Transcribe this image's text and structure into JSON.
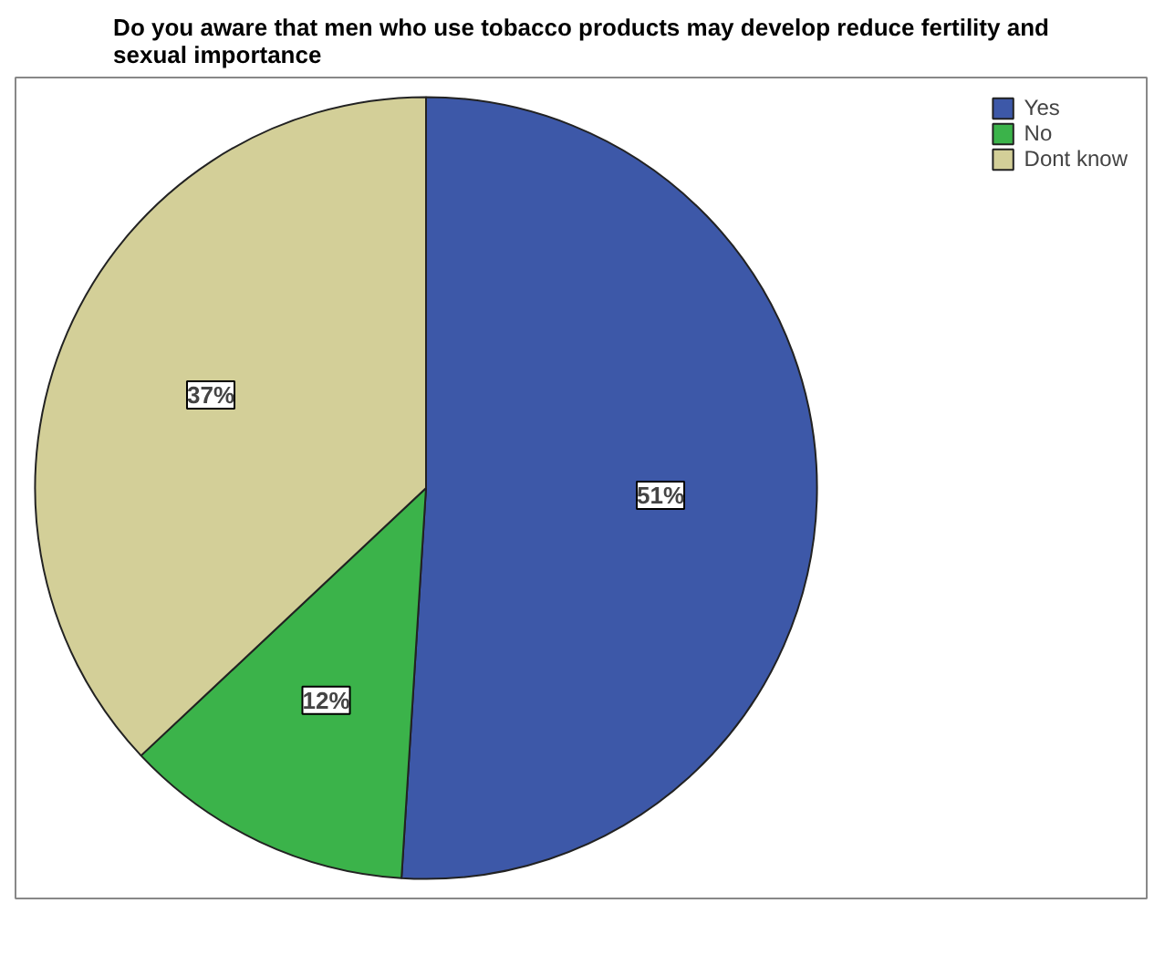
{
  "chart_data": {
    "type": "pie",
    "title": "Do you aware that men who use tobacco products may develop reduce fertility and sexual importance",
    "categories": [
      "Yes",
      "No",
      "Dont know"
    ],
    "values": [
      51,
      12,
      37
    ],
    "colors": [
      "#3d58a8",
      "#3bb34a",
      "#d3cf98"
    ],
    "value_labels": [
      "51%",
      "12%",
      "37%"
    ],
    "legend": "top right"
  }
}
